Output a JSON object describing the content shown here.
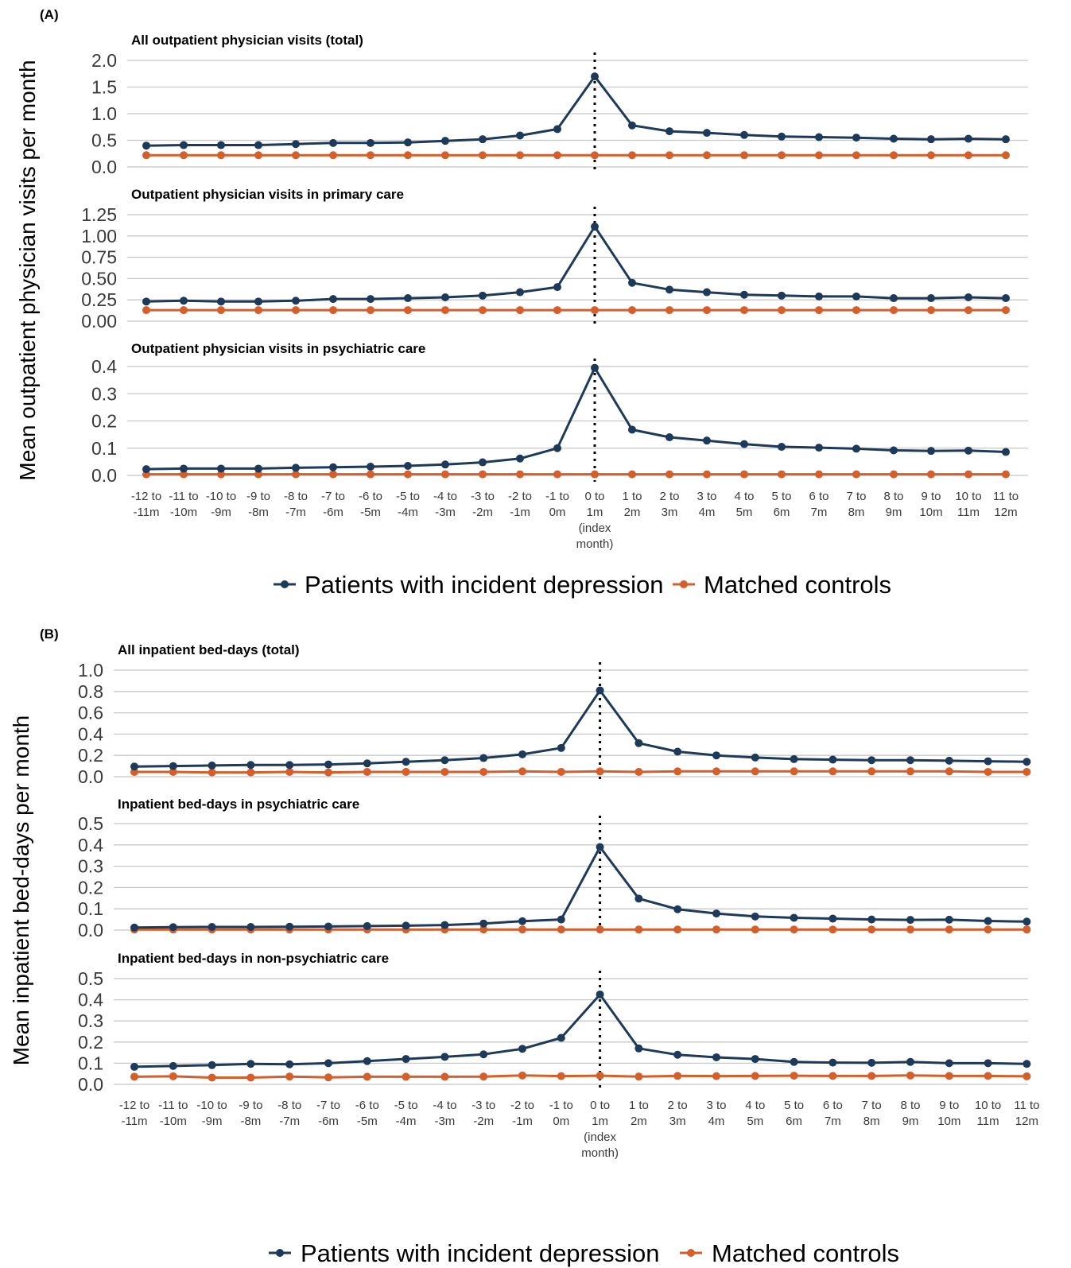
{
  "colors": {
    "patients": "#1e3a5a",
    "controls": "#d45f2a",
    "grid": "#c8c8c8",
    "index_line": "#000000"
  },
  "x_categories": [
    [
      "-12 to",
      "-11m"
    ],
    [
      "-11 to",
      "-10m"
    ],
    [
      "-10 to",
      "-9m"
    ],
    [
      "-9 to",
      "-8m"
    ],
    [
      "-8 to",
      "-7m"
    ],
    [
      "-7 to",
      "-6m"
    ],
    [
      "-6 to",
      "-5m"
    ],
    [
      "-5 to",
      "-4m"
    ],
    [
      "-4 to",
      "-3m"
    ],
    [
      "-3 to",
      "-2m"
    ],
    [
      "-2 to",
      "-1m"
    ],
    [
      "-1 to",
      "0m"
    ],
    [
      "0 to",
      "1m",
      "(index",
      "month)"
    ],
    [
      "1 to",
      "2m"
    ],
    [
      "2 to",
      "3m"
    ],
    [
      "3 to",
      "4m"
    ],
    [
      "4 to",
      "5m"
    ],
    [
      "5 to",
      "6m"
    ],
    [
      "6 to",
      "7m"
    ],
    [
      "7 to",
      "8m"
    ],
    [
      "8 to",
      "9m"
    ],
    [
      "9 to",
      "10m"
    ],
    [
      "10 to",
      "11m"
    ],
    [
      "11 to",
      "12m"
    ]
  ],
  "legend": {
    "patients": "Patients with incident depression",
    "controls": "Matched controls"
  },
  "panels": [
    {
      "label": "(A)",
      "ylabel": "Mean outpatient physician visits per month",
      "index_position": 12
    },
    {
      "label": "(B)",
      "ylabel": "Mean inpatient bed-days per month",
      "index_position": 12
    }
  ],
  "chart_data": [
    {
      "type": "line",
      "panel": "A",
      "title": "All outpatient physician visits (total)",
      "ylim": [
        0,
        2.0
      ],
      "yticks": [
        "0.0",
        "0.5",
        "1.0",
        "1.5",
        "2.0"
      ],
      "grid": true,
      "series": [
        {
          "name": "Patients with incident depression",
          "values": [
            0.4,
            0.41,
            0.41,
            0.41,
            0.43,
            0.45,
            0.45,
            0.46,
            0.49,
            0.52,
            0.59,
            0.71,
            1.7,
            0.78,
            0.67,
            0.64,
            0.6,
            0.57,
            0.56,
            0.55,
            0.53,
            0.52,
            0.53,
            0.52
          ]
        },
        {
          "name": "Matched controls",
          "values": [
            0.22,
            0.22,
            0.22,
            0.22,
            0.22,
            0.22,
            0.22,
            0.22,
            0.22,
            0.22,
            0.22,
            0.22,
            0.22,
            0.22,
            0.22,
            0.22,
            0.22,
            0.22,
            0.22,
            0.22,
            0.22,
            0.22,
            0.22,
            0.22
          ]
        }
      ]
    },
    {
      "type": "line",
      "panel": "A",
      "title": "Outpatient physician visits in primary care",
      "ylim": [
        0,
        1.25
      ],
      "yticks": [
        "0.00",
        "0.25",
        "0.50",
        "0.75",
        "1.00",
        "1.25"
      ],
      "grid": true,
      "series": [
        {
          "name": "Patients with incident depression",
          "values": [
            0.23,
            0.24,
            0.23,
            0.23,
            0.24,
            0.26,
            0.26,
            0.27,
            0.28,
            0.3,
            0.34,
            0.4,
            1.11,
            0.45,
            0.37,
            0.34,
            0.31,
            0.3,
            0.29,
            0.29,
            0.27,
            0.27,
            0.28,
            0.27
          ]
        },
        {
          "name": "Matched controls",
          "values": [
            0.13,
            0.13,
            0.13,
            0.13,
            0.13,
            0.13,
            0.13,
            0.13,
            0.13,
            0.13,
            0.13,
            0.13,
            0.13,
            0.13,
            0.13,
            0.13,
            0.13,
            0.13,
            0.13,
            0.13,
            0.13,
            0.13,
            0.13,
            0.13
          ]
        }
      ]
    },
    {
      "type": "line",
      "panel": "A",
      "title": "Outpatient physician visits in psychiatric care",
      "ylim": [
        0,
        0.4
      ],
      "yticks": [
        "0.0",
        "0.1",
        "0.2",
        "0.3",
        "0.4"
      ],
      "grid": true,
      "series": [
        {
          "name": "Patients with incident depression",
          "values": [
            0.023,
            0.025,
            0.025,
            0.025,
            0.028,
            0.03,
            0.032,
            0.035,
            0.04,
            0.048,
            0.062,
            0.1,
            0.395,
            0.168,
            0.14,
            0.128,
            0.115,
            0.105,
            0.102,
            0.098,
            0.092,
            0.09,
            0.091,
            0.086
          ]
        },
        {
          "name": "Matched controls",
          "values": [
            0.004,
            0.004,
            0.004,
            0.004,
            0.004,
            0.004,
            0.004,
            0.004,
            0.004,
            0.004,
            0.004,
            0.004,
            0.004,
            0.004,
            0.004,
            0.004,
            0.004,
            0.004,
            0.004,
            0.004,
            0.004,
            0.004,
            0.004,
            0.004
          ]
        }
      ]
    },
    {
      "type": "line",
      "panel": "B",
      "title": "All inpatient bed-days (total)",
      "ylim": [
        0,
        1.0
      ],
      "yticks": [
        "0.0",
        "0.2",
        "0.4",
        "0.6",
        "0.8",
        "1.0"
      ],
      "grid": true,
      "series": [
        {
          "name": "Patients with incident depression",
          "values": [
            0.095,
            0.1,
            0.105,
            0.11,
            0.11,
            0.115,
            0.125,
            0.14,
            0.155,
            0.175,
            0.21,
            0.27,
            0.81,
            0.315,
            0.235,
            0.2,
            0.18,
            0.165,
            0.16,
            0.155,
            0.155,
            0.15,
            0.145,
            0.14
          ]
        },
        {
          "name": "Matched controls",
          "values": [
            0.045,
            0.045,
            0.04,
            0.04,
            0.045,
            0.04,
            0.045,
            0.045,
            0.045,
            0.045,
            0.05,
            0.045,
            0.05,
            0.045,
            0.05,
            0.05,
            0.05,
            0.05,
            0.05,
            0.05,
            0.05,
            0.05,
            0.045,
            0.045
          ]
        }
      ]
    },
    {
      "type": "line",
      "panel": "B",
      "title": "Inpatient bed-days in psychiatric care",
      "ylim": [
        0,
        0.5
      ],
      "yticks": [
        "0.0",
        "0.1",
        "0.2",
        "0.3",
        "0.4",
        "0.5"
      ],
      "grid": true,
      "series": [
        {
          "name": "Patients with incident depression",
          "values": [
            0.012,
            0.014,
            0.015,
            0.015,
            0.016,
            0.017,
            0.019,
            0.021,
            0.024,
            0.031,
            0.042,
            0.05,
            0.39,
            0.148,
            0.098,
            0.078,
            0.064,
            0.058,
            0.054,
            0.05,
            0.048,
            0.049,
            0.043,
            0.04
          ]
        },
        {
          "name": "Matched controls",
          "values": [
            0.003,
            0.003,
            0.003,
            0.003,
            0.003,
            0.003,
            0.003,
            0.003,
            0.003,
            0.003,
            0.003,
            0.003,
            0.003,
            0.003,
            0.003,
            0.003,
            0.003,
            0.003,
            0.003,
            0.003,
            0.003,
            0.003,
            0.003,
            0.003
          ]
        }
      ]
    },
    {
      "type": "line",
      "panel": "B",
      "title": "Inpatient bed-days in non-psychiatric care",
      "ylim": [
        0,
        0.5
      ],
      "yticks": [
        "0.0",
        "0.1",
        "0.2",
        "0.3",
        "0.4",
        "0.5"
      ],
      "grid": true,
      "series": [
        {
          "name": "Patients with incident depression",
          "values": [
            0.083,
            0.087,
            0.091,
            0.097,
            0.095,
            0.1,
            0.11,
            0.12,
            0.13,
            0.142,
            0.168,
            0.22,
            0.425,
            0.17,
            0.14,
            0.128,
            0.12,
            0.106,
            0.103,
            0.102,
            0.106,
            0.1,
            0.1,
            0.097
          ]
        },
        {
          "name": "Matched controls",
          "values": [
            0.036,
            0.038,
            0.032,
            0.032,
            0.037,
            0.033,
            0.036,
            0.036,
            0.036,
            0.037,
            0.042,
            0.039,
            0.041,
            0.037,
            0.04,
            0.039,
            0.04,
            0.041,
            0.04,
            0.04,
            0.042,
            0.04,
            0.04,
            0.038
          ]
        }
      ]
    }
  ]
}
